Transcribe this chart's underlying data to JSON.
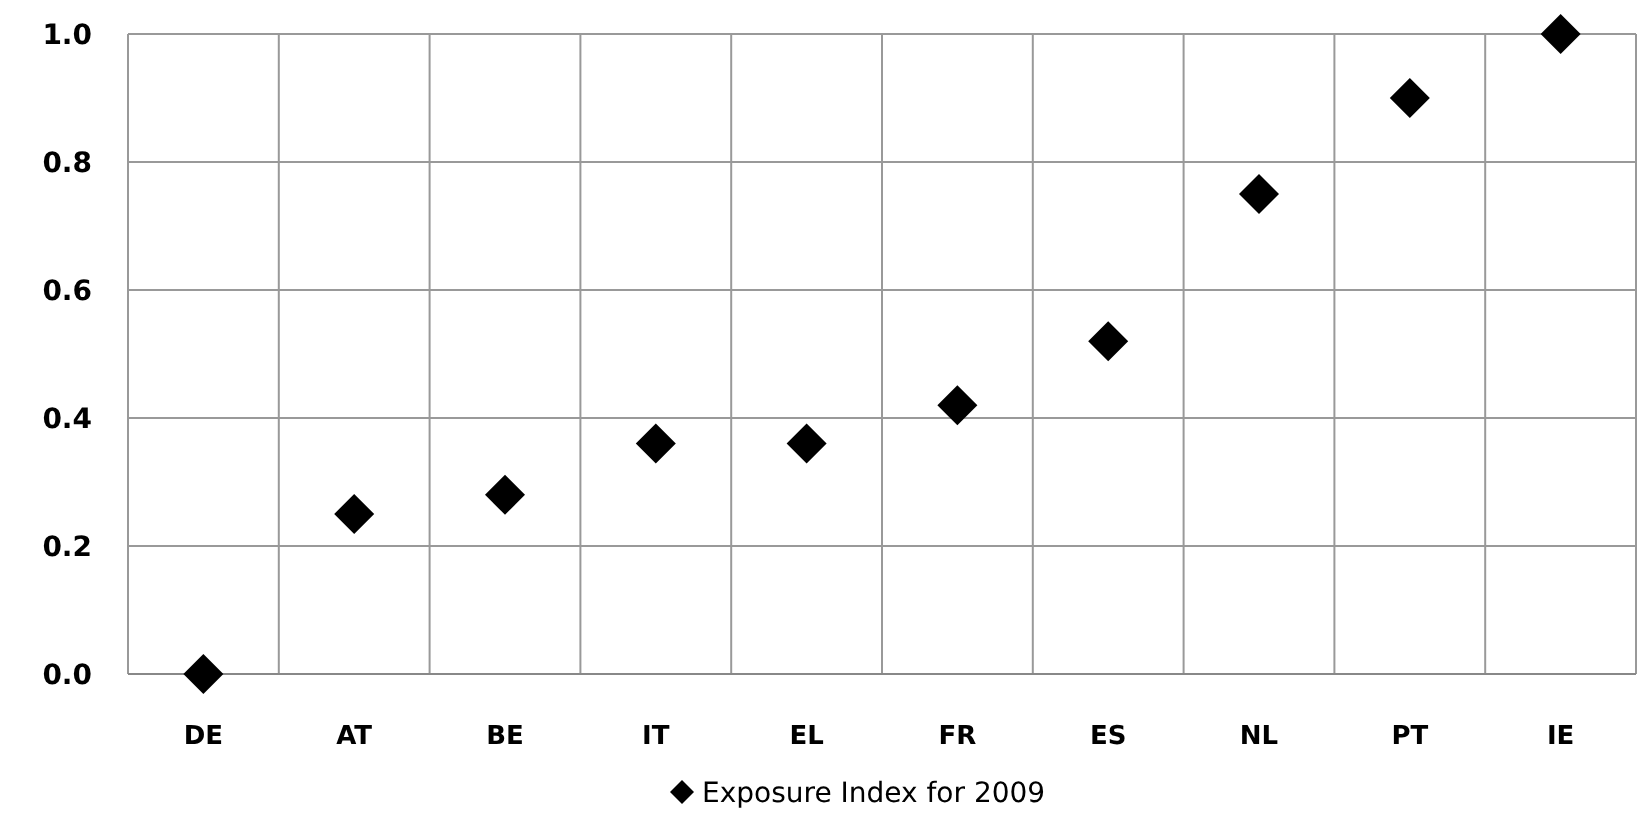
{
  "chart_data": {
    "type": "scatter",
    "categories": [
      "DE",
      "AT",
      "BE",
      "IT",
      "EL",
      "FR",
      "ES",
      "NL",
      "PT",
      "IE"
    ],
    "series": [
      {
        "name": "Exposure Index for 2009",
        "color": "#000000",
        "values": [
          0,
          0.25,
          0.28,
          0.36,
          0.36,
          0.42,
          0.52,
          0.75,
          0.9,
          1.0
        ]
      }
    ],
    "ylim": [
      0,
      1.0
    ],
    "yticks": [
      {
        "value": 0,
        "label": "0.0"
      },
      {
        "value": 0.2,
        "label": "0.2"
      },
      {
        "value": 0.4,
        "label": "0.4"
      },
      {
        "value": 0.6,
        "label": "0.6"
      },
      {
        "value": 0.8,
        "label": "0.8"
      },
      {
        "value": 1.0,
        "label": "1.0"
      }
    ],
    "grid": true,
    "legend": "bottom",
    "marker": "diamond"
  }
}
